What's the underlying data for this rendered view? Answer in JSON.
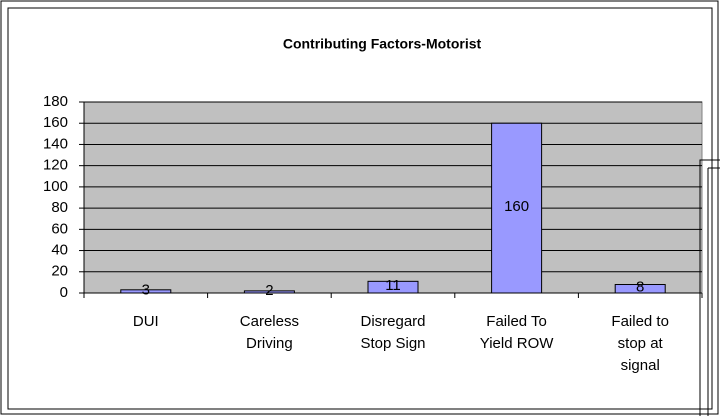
{
  "chart_data": {
    "type": "bar",
    "title": "Contributing Factors-Motorist",
    "categories": [
      "DUI",
      "Careless Driving",
      "Disregard Stop Sign",
      "Failed To Yield ROW",
      "Failed to stop at signal"
    ],
    "values": [
      3,
      2,
      11,
      160,
      8
    ],
    "color": "#9999ff",
    "ylim": [
      0,
      180
    ],
    "yticks": [
      0,
      20,
      40,
      60,
      80,
      100,
      120,
      140,
      160,
      180
    ],
    "grid": true
  }
}
